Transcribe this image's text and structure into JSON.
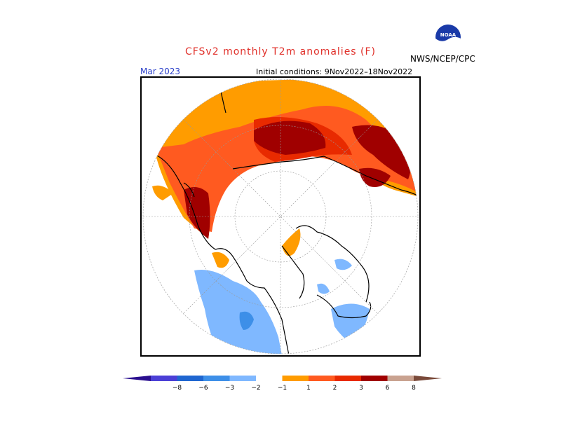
{
  "header": {
    "title": "CFSv2 monthly T2m anomalies (F)",
    "month": "Mar 2023",
    "initial_conditions": "Initial conditions: 9Nov2022–18Nov2022",
    "organization": "NWS/NCEP/CPC",
    "logo_text": "NOAA",
    "title_color": "#e0302a",
    "month_color": "#2a3fc9"
  },
  "map": {
    "projection": "polar-stereographic",
    "hemisphere": "northern",
    "variable": "T2m anomaly"
  },
  "colorbar": {
    "labels": [
      "−8",
      "−6",
      "−3",
      "−2",
      "−1",
      "1",
      "2",
      "3",
      "6",
      "8"
    ],
    "colors": [
      "#2a0f8f",
      "#4b3fd6",
      "#1f66d0",
      "#3d8fe8",
      "#7fb8ff",
      "#ffffff",
      "#ff9c00",
      "#ff5a20",
      "#e82a00",
      "#a00000",
      "#c9a290",
      "#7a4a3a"
    ]
  }
}
